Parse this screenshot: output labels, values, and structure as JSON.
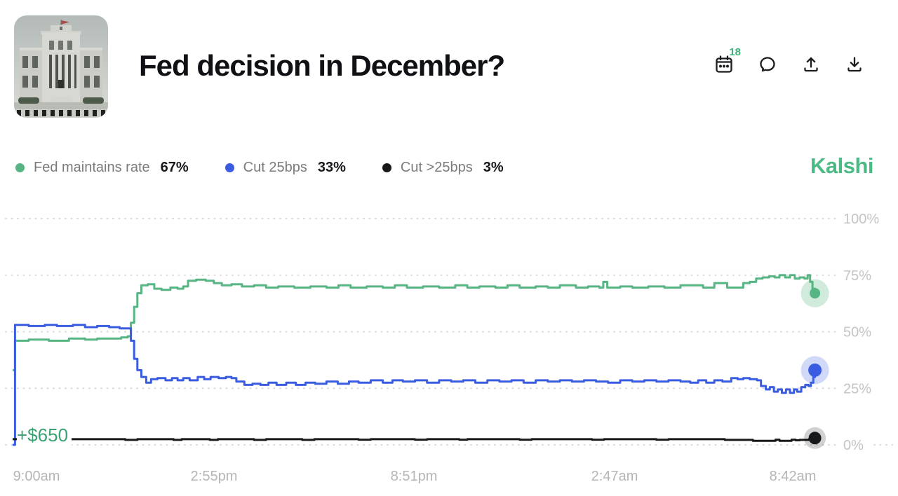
{
  "header": {
    "title": "Fed decision in December?",
    "calendar_badge": "18",
    "icons": [
      "calendar-icon",
      "comment-icon",
      "share-icon",
      "download-icon"
    ]
  },
  "brand": {
    "name": "Kalshi",
    "color": "#4cba84"
  },
  "legend": [
    {
      "label": "Fed maintains rate",
      "value": "67%",
      "color": "#56b583"
    },
    {
      "label": "Cut 25bps",
      "value": "33%",
      "color": "#3a5ce0"
    },
    {
      "label": "Cut >25bps",
      "value": "3%",
      "color": "#17181a"
    }
  ],
  "annotation": {
    "text": "+$650",
    "color": "#3aa273"
  },
  "chart_data": {
    "type": "line",
    "title": "Fed decision in December?",
    "x_tick_labels": [
      "9:00am",
      "2:55pm",
      "8:51pm",
      "2:47am",
      "8:42am"
    ],
    "y_ticks": [
      100,
      75,
      50,
      25,
      0
    ],
    "y_tick_labels": [
      "100%",
      "75%",
      "50%",
      "25%",
      "0%"
    ],
    "ylim": [
      0,
      100
    ],
    "grid": "horizontal-dotted",
    "legend_position": "top-left",
    "series": [
      {
        "name": "Fed maintains rate",
        "current": 67,
        "color": "#56b583",
        "halo": "rgba(86,181,131,0.28)",
        "dot_r": 7.5,
        "halo_r": 20,
        "points": [
          [
            0,
            33
          ],
          [
            0.003,
            46
          ],
          [
            0.02,
            46.5
          ],
          [
            0.045,
            46
          ],
          [
            0.07,
            47
          ],
          [
            0.09,
            46.5
          ],
          [
            0.105,
            47
          ],
          [
            0.12,
            47
          ],
          [
            0.135,
            47.5
          ],
          [
            0.143,
            48
          ],
          [
            0.147,
            54
          ],
          [
            0.151,
            61
          ],
          [
            0.155,
            67
          ],
          [
            0.16,
            70.5
          ],
          [
            0.168,
            71
          ],
          [
            0.176,
            69
          ],
          [
            0.185,
            68.5
          ],
          [
            0.196,
            69.5
          ],
          [
            0.205,
            69
          ],
          [
            0.212,
            70
          ],
          [
            0.218,
            72.5
          ],
          [
            0.228,
            73
          ],
          [
            0.24,
            72.5
          ],
          [
            0.25,
            71.5
          ],
          [
            0.26,
            70.5
          ],
          [
            0.272,
            71
          ],
          [
            0.285,
            70
          ],
          [
            0.3,
            70.5
          ],
          [
            0.315,
            69.5
          ],
          [
            0.33,
            70
          ],
          [
            0.35,
            69.5
          ],
          [
            0.37,
            70
          ],
          [
            0.39,
            69.5
          ],
          [
            0.405,
            70.5
          ],
          [
            0.42,
            69.5
          ],
          [
            0.44,
            70
          ],
          [
            0.46,
            69.5
          ],
          [
            0.475,
            70.5
          ],
          [
            0.49,
            69.5
          ],
          [
            0.51,
            70
          ],
          [
            0.53,
            69.5
          ],
          [
            0.55,
            70.5
          ],
          [
            0.565,
            69.5
          ],
          [
            0.58,
            70
          ],
          [
            0.6,
            69.5
          ],
          [
            0.615,
            70.5
          ],
          [
            0.63,
            69.5
          ],
          [
            0.65,
            70
          ],
          [
            0.665,
            69.5
          ],
          [
            0.68,
            70.5
          ],
          [
            0.7,
            69.5
          ],
          [
            0.715,
            70
          ],
          [
            0.729,
            69.5
          ],
          [
            0.734,
            72
          ],
          [
            0.739,
            69.5
          ],
          [
            0.755,
            70
          ],
          [
            0.77,
            69.5
          ],
          [
            0.79,
            70
          ],
          [
            0.81,
            69.5
          ],
          [
            0.83,
            70.5
          ],
          [
            0.845,
            70.5
          ],
          [
            0.858,
            69.5
          ],
          [
            0.872,
            71.5
          ],
          [
            0.88,
            71.5
          ],
          [
            0.888,
            69.5
          ],
          [
            0.9,
            69.5
          ],
          [
            0.908,
            71.5
          ],
          [
            0.916,
            72
          ],
          [
            0.924,
            73.5
          ],
          [
            0.932,
            74
          ],
          [
            0.94,
            74.5
          ],
          [
            0.947,
            74
          ],
          [
            0.953,
            75
          ],
          [
            0.96,
            74
          ],
          [
            0.966,
            75
          ],
          [
            0.972,
            73.5
          ],
          [
            0.978,
            74
          ],
          [
            0.984,
            73.5
          ],
          [
            0.988,
            75
          ],
          [
            0.991,
            72
          ],
          [
            0.994,
            69
          ],
          [
            0.997,
            67
          ]
        ]
      },
      {
        "name": "Cut 25bps",
        "current": 33,
        "color": "#3a5ce0",
        "halo": "rgba(72,104,232,0.25)",
        "dot_r": 9.5,
        "halo_r": 20,
        "points": [
          [
            0,
            0
          ],
          [
            0.003,
            53
          ],
          [
            0.02,
            52.5
          ],
          [
            0.04,
            53
          ],
          [
            0.055,
            52.5
          ],
          [
            0.075,
            53
          ],
          [
            0.09,
            52
          ],
          [
            0.105,
            52.5
          ],
          [
            0.12,
            52
          ],
          [
            0.133,
            51.5
          ],
          [
            0.143,
            51.5
          ],
          [
            0.147,
            46
          ],
          [
            0.151,
            38
          ],
          [
            0.155,
            33
          ],
          [
            0.16,
            30
          ],
          [
            0.166,
            27.5
          ],
          [
            0.172,
            29
          ],
          [
            0.18,
            29.5
          ],
          [
            0.19,
            28.5
          ],
          [
            0.198,
            29.5
          ],
          [
            0.205,
            28.5
          ],
          [
            0.212,
            29.5
          ],
          [
            0.22,
            28.5
          ],
          [
            0.23,
            30
          ],
          [
            0.238,
            29
          ],
          [
            0.246,
            30
          ],
          [
            0.256,
            29.5
          ],
          [
            0.265,
            30
          ],
          [
            0.272,
            29.5
          ],
          [
            0.278,
            28
          ],
          [
            0.288,
            26.5
          ],
          [
            0.298,
            27
          ],
          [
            0.308,
            26.5
          ],
          [
            0.318,
            27.5
          ],
          [
            0.328,
            26.5
          ],
          [
            0.34,
            27.5
          ],
          [
            0.352,
            26.5
          ],
          [
            0.364,
            27.5
          ],
          [
            0.376,
            27
          ],
          [
            0.39,
            28
          ],
          [
            0.404,
            27
          ],
          [
            0.418,
            28
          ],
          [
            0.43,
            27.5
          ],
          [
            0.445,
            28.5
          ],
          [
            0.46,
            27.5
          ],
          [
            0.472,
            28.5
          ],
          [
            0.485,
            28
          ],
          [
            0.5,
            28.5
          ],
          [
            0.515,
            27.5
          ],
          [
            0.53,
            28.5
          ],
          [
            0.545,
            28
          ],
          [
            0.56,
            28.5
          ],
          [
            0.575,
            27.5
          ],
          [
            0.59,
            28.5
          ],
          [
            0.605,
            28
          ],
          [
            0.62,
            28.5
          ],
          [
            0.635,
            27.5
          ],
          [
            0.65,
            28.5
          ],
          [
            0.665,
            28
          ],
          [
            0.68,
            28.5
          ],
          [
            0.695,
            28
          ],
          [
            0.71,
            28.5
          ],
          [
            0.725,
            28
          ],
          [
            0.74,
            27.5
          ],
          [
            0.755,
            28.5
          ],
          [
            0.77,
            28
          ],
          [
            0.785,
            28.5
          ],
          [
            0.8,
            28
          ],
          [
            0.815,
            28.5
          ],
          [
            0.83,
            28
          ],
          [
            0.842,
            27.5
          ],
          [
            0.852,
            28.5
          ],
          [
            0.862,
            27.5
          ],
          [
            0.872,
            28.5
          ],
          [
            0.882,
            28
          ],
          [
            0.893,
            29.5
          ],
          [
            0.901,
            29
          ],
          [
            0.908,
            29.5
          ],
          [
            0.916,
            29
          ],
          [
            0.925,
            28.5
          ],
          [
            0.93,
            26
          ],
          [
            0.936,
            24.5
          ],
          [
            0.941,
            25.5
          ],
          [
            0.946,
            23.5
          ],
          [
            0.951,
            24.5
          ],
          [
            0.956,
            23
          ],
          [
            0.961,
            24.5
          ],
          [
            0.966,
            23
          ],
          [
            0.971,
            24.5
          ],
          [
            0.975,
            23.5
          ],
          [
            0.98,
            25.5
          ],
          [
            0.985,
            26.5
          ],
          [
            0.989,
            26
          ],
          [
            0.992,
            27.5
          ],
          [
            0.995,
            30
          ],
          [
            0.997,
            33
          ]
        ]
      },
      {
        "name": "Cut >25bps",
        "current": 3,
        "color": "#17181a",
        "halo": "rgba(0,0,0,0.18)",
        "dot_r": 9,
        "halo_r": 15.5,
        "points": [
          [
            0,
            2.5
          ],
          [
            0.09,
            2.5
          ],
          [
            0.14,
            2.2
          ],
          [
            0.155,
            2.5
          ],
          [
            0.2,
            2.2
          ],
          [
            0.21,
            2.5
          ],
          [
            0.245,
            2.2
          ],
          [
            0.255,
            2.5
          ],
          [
            0.3,
            2.2
          ],
          [
            0.315,
            2.5
          ],
          [
            0.36,
            2.2
          ],
          [
            0.375,
            2.5
          ],
          [
            0.43,
            2.3
          ],
          [
            0.445,
            2.5
          ],
          [
            0.5,
            2.3
          ],
          [
            0.515,
            2.5
          ],
          [
            0.555,
            2.3
          ],
          [
            0.565,
            2.5
          ],
          [
            0.63,
            2.3
          ],
          [
            0.645,
            2.5
          ],
          [
            0.72,
            2.3
          ],
          [
            0.735,
            2.5
          ],
          [
            0.8,
            2.3
          ],
          [
            0.815,
            2.5
          ],
          [
            0.885,
            2.2
          ],
          [
            0.92,
            1.8
          ],
          [
            0.943,
            1.8
          ],
          [
            0.948,
            2.3
          ],
          [
            0.953,
            1.8
          ],
          [
            0.963,
            1.8
          ],
          [
            0.968,
            2.3
          ],
          [
            0.973,
            2
          ],
          [
            0.978,
            2.2
          ],
          [
            0.985,
            2.2
          ],
          [
            0.99,
            2.6
          ],
          [
            0.997,
            3
          ]
        ]
      }
    ]
  }
}
